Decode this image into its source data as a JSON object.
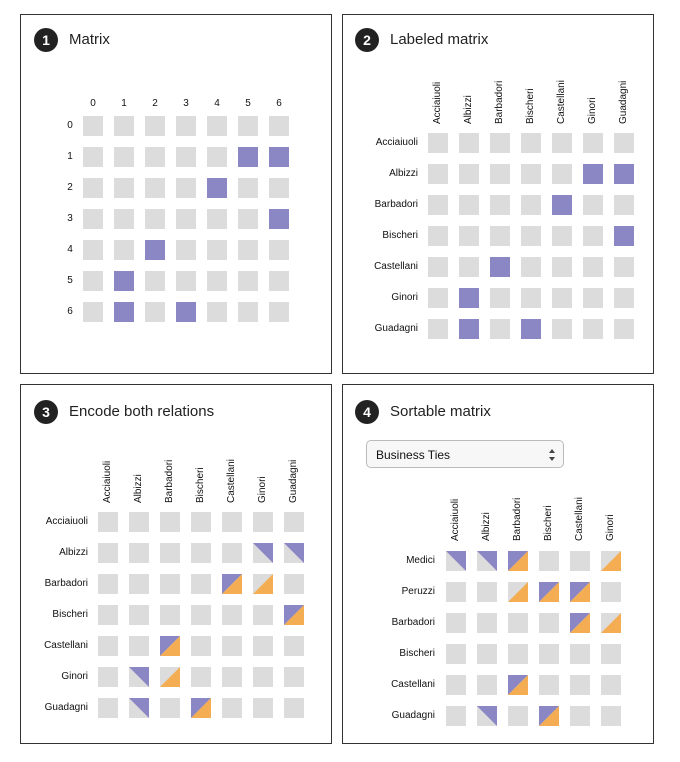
{
  "colors": {
    "off": "#dcdcdc",
    "purple": "#8b87c4",
    "orange": "#f4ad52"
  },
  "panels": [
    {
      "number": "1",
      "title": "Matrix"
    },
    {
      "number": "2",
      "title": "Labeled matrix"
    },
    {
      "number": "3",
      "title": "Encode both relations"
    },
    {
      "number": "4",
      "title": "Sortable matrix"
    }
  ],
  "matrix1": {
    "indices": [
      "0",
      "1",
      "2",
      "3",
      "4",
      "5",
      "6"
    ],
    "links": [
      [
        1,
        5
      ],
      [
        1,
        6
      ],
      [
        2,
        4
      ],
      [
        3,
        6
      ],
      [
        4,
        2
      ],
      [
        5,
        1
      ],
      [
        6,
        1
      ],
      [
        6,
        3
      ]
    ]
  },
  "matrix2": {
    "names": [
      "Acciaiuoli",
      "Albizzi",
      "Barbadori",
      "Bischeri",
      "Castellani",
      "Ginori",
      "Guadagni"
    ],
    "links": [
      [
        1,
        5
      ],
      [
        1,
        6
      ],
      [
        2,
        4
      ],
      [
        3,
        6
      ],
      [
        4,
        2
      ],
      [
        5,
        1
      ],
      [
        6,
        1
      ],
      [
        6,
        3
      ]
    ]
  },
  "matrix3": {
    "names": [
      "Acciaiuoli",
      "Albizzi",
      "Barbadori",
      "Bischeri",
      "Castellani",
      "Ginori",
      "Guadagni"
    ],
    "cells": [
      [
        1,
        5,
        "purple"
      ],
      [
        1,
        6,
        "purple"
      ],
      [
        2,
        4,
        "both"
      ],
      [
        2,
        5,
        "orange"
      ],
      [
        3,
        6,
        "both"
      ],
      [
        4,
        2,
        "both"
      ],
      [
        5,
        1,
        "purple"
      ],
      [
        5,
        2,
        "orange"
      ],
      [
        6,
        1,
        "purple"
      ],
      [
        6,
        3,
        "both"
      ]
    ]
  },
  "matrix4": {
    "select_value": "Business Ties",
    "rows": [
      "Medici",
      "Peruzzi",
      "Barbadori",
      "Bischeri",
      "Castellani",
      "Guadagni"
    ],
    "cols": [
      "Acciaiuoli",
      "Albizzi",
      "Barbadori",
      "Bischeri",
      "Castellani",
      "Ginori"
    ],
    "cells": [
      [
        0,
        0,
        "purple"
      ],
      [
        0,
        1,
        "purple"
      ],
      [
        0,
        2,
        "both"
      ],
      [
        0,
        5,
        "orange"
      ],
      [
        1,
        2,
        "orange"
      ],
      [
        1,
        3,
        "both"
      ],
      [
        1,
        4,
        "both"
      ],
      [
        2,
        4,
        "both"
      ],
      [
        2,
        5,
        "orange"
      ],
      [
        4,
        2,
        "both"
      ],
      [
        5,
        1,
        "purple"
      ],
      [
        5,
        3,
        "both"
      ]
    ]
  }
}
